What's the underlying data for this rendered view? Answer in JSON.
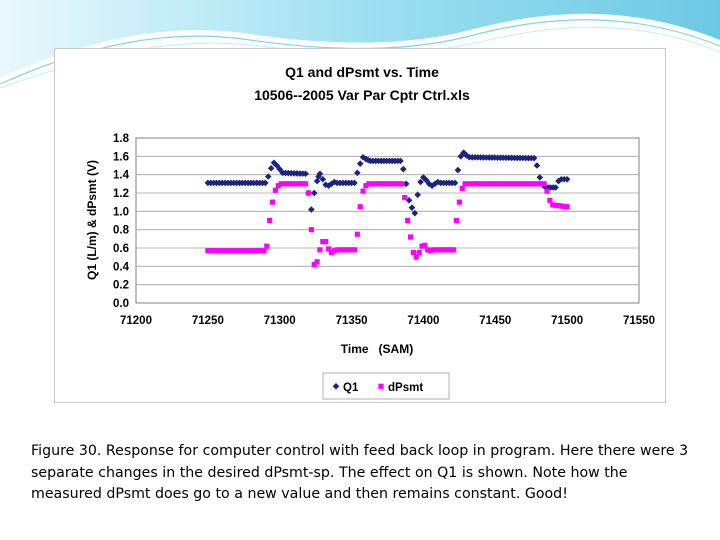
{
  "colors": {
    "q1": "#1a237e",
    "dpsmt": "#ff00ff",
    "header_wave": "#7fd3ea",
    "header_wave_light": "#c6ecf6"
  },
  "caption": "Figure 30.  Response for computer control with feed back loop in program.  Here there were 3 separate changes in the desired dPsmt-sp.  The effect on Q1 is shown.  Note how the measured dPsmt does go to a new value and then remains constant.  Good!",
  "chart_data": {
    "type": "scatter",
    "title": [
      "Q1 and dPsmt  vs. Time",
      "10506--2005 Var Par Cptr Ctrl.xls"
    ],
    "xlabel": "Time   (SAM)",
    "ylabel": "Q1 (L/m) & dPsmt (V)",
    "xlim": [
      71200,
      71550
    ],
    "ylim": [
      0.0,
      1.8
    ],
    "xticks": [
      "71200",
      "71250",
      "71300",
      "71350",
      "71400",
      "71450",
      "71500",
      "71550"
    ],
    "yticks": [
      "0.0",
      "0.2",
      "0.4",
      "0.6",
      "0.8",
      "1.0",
      "1.2",
      "1.4",
      "1.6",
      "1.8"
    ],
    "grid": true,
    "legend_position": "bottom",
    "series": [
      {
        "name": "Q1",
        "marker": "diamond",
        "segments": [
          [
            [
              71250,
              1.31
            ],
            [
              71290,
              1.31
            ],
            [
              71292,
              1.38
            ],
            [
              71294,
              1.47
            ],
            [
              71296,
              1.53
            ],
            [
              71298,
              1.5
            ],
            [
              71300,
              1.46
            ],
            [
              71302,
              1.42
            ],
            [
              71318,
              1.41
            ],
            [
              71320,
              1.2
            ],
            [
              71322,
              1.02
            ],
            [
              71324,
              1.2
            ],
            [
              71326,
              1.33
            ],
            [
              71327,
              1.38
            ],
            [
              71328,
              1.41
            ],
            [
              71330,
              1.35
            ],
            [
              71332,
              1.29
            ],
            [
              71334,
              1.28
            ],
            [
              71336,
              1.3
            ],
            [
              71338,
              1.32
            ],
            [
              71340,
              1.31
            ],
            [
              71352,
              1.31
            ],
            [
              71354,
              1.42
            ],
            [
              71356,
              1.52
            ],
            [
              71358,
              1.59
            ],
            [
              71360,
              1.57
            ],
            [
              71363,
              1.55
            ],
            [
              71384,
              1.55
            ],
            [
              71386,
              1.46
            ],
            [
              71388,
              1.3
            ],
            [
              71390,
              1.12
            ],
            [
              71392,
              1.04
            ],
            [
              71394,
              0.98
            ],
            [
              71396,
              1.18
            ],
            [
              71398,
              1.32
            ],
            [
              71400,
              1.37
            ],
            [
              71402,
              1.34
            ],
            [
              71404,
              1.3
            ],
            [
              71406,
              1.28
            ],
            [
              71408,
              1.3
            ],
            [
              71410,
              1.32
            ],
            [
              71412,
              1.31
            ],
            [
              71422,
              1.31
            ],
            [
              71424,
              1.45
            ],
            [
              71426,
              1.6
            ],
            [
              71428,
              1.64
            ],
            [
              71430,
              1.61
            ],
            [
              71432,
              1.59
            ],
            [
              71477,
              1.58
            ],
            [
              71479,
              1.5
            ],
            [
              71481,
              1.37
            ],
            [
              71483,
              1.29
            ],
            [
              71485,
              1.26
            ],
            [
              71492,
              1.26
            ],
            [
              71494,
              1.33
            ],
            [
              71496,
              1.35
            ],
            [
              71500,
              1.35
            ]
          ]
        ]
      },
      {
        "name": "dPsmt",
        "marker": "square",
        "segments": [
          [
            [
              71250,
              0.57
            ],
            [
              71289,
              0.57
            ],
            [
              71291,
              0.62
            ],
            [
              71293,
              0.9
            ],
            [
              71295,
              1.1
            ],
            [
              71297,
              1.23
            ],
            [
              71299,
              1.28
            ],
            [
              71301,
              1.3
            ],
            [
              71318,
              1.3
            ],
            [
              71320,
              1.2
            ],
            [
              71322,
              0.8
            ],
            [
              71324,
              0.42
            ],
            [
              71326,
              0.45
            ],
            [
              71328,
              0.58
            ],
            [
              71330,
              0.67
            ],
            [
              71332,
              0.67
            ],
            [
              71334,
              0.59
            ],
            [
              71336,
              0.55
            ],
            [
              71338,
              0.57
            ],
            [
              71340,
              0.58
            ],
            [
              71352,
              0.58
            ],
            [
              71354,
              0.75
            ],
            [
              71356,
              1.05
            ],
            [
              71358,
              1.22
            ],
            [
              71360,
              1.28
            ],
            [
              71362,
              1.3
            ],
            [
              71385,
              1.3
            ],
            [
              71387,
              1.15
            ],
            [
              71389,
              0.9
            ],
            [
              71391,
              0.72
            ],
            [
              71393,
              0.55
            ],
            [
              71395,
              0.5
            ],
            [
              71397,
              0.55
            ],
            [
              71399,
              0.62
            ],
            [
              71401,
              0.63
            ],
            [
              71403,
              0.58
            ],
            [
              71405,
              0.57
            ],
            [
              71407,
              0.58
            ],
            [
              71421,
              0.58
            ],
            [
              71423,
              0.9
            ],
            [
              71425,
              1.1
            ],
            [
              71427,
              1.25
            ],
            [
              71429,
              1.3
            ],
            [
              71484,
              1.3
            ],
            [
              71486,
              1.22
            ],
            [
              71488,
              1.12
            ],
            [
              71490,
              1.07
            ],
            [
              71500,
              1.05
            ]
          ]
        ]
      }
    ]
  }
}
